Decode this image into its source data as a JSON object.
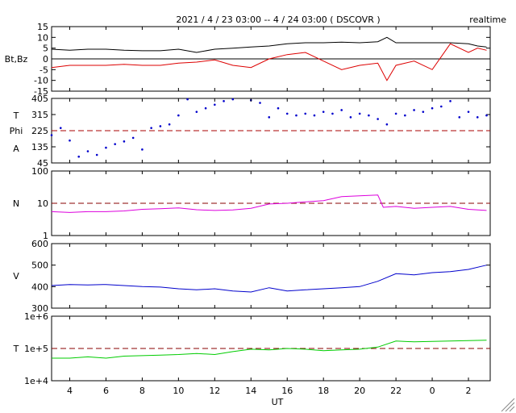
{
  "header": {
    "title": "2021 / 4 / 23  03:00 --  4 / 24  03:00 ( DSCOVR )",
    "mode": "realtime"
  },
  "xaxis": {
    "label": "UT",
    "ticks": [
      "4",
      "6",
      "8",
      "10",
      "12",
      "14",
      "16",
      "18",
      "20",
      "22",
      "0",
      "2"
    ],
    "range_hours": [
      3,
      27.2
    ]
  },
  "colors": {
    "bt": "#000000",
    "bz": "#dd0000",
    "angle": "#0000cc",
    "phi_ref": "#aa0000",
    "density": "#dd00dd",
    "velocity": "#0000cc",
    "temperature": "#00cc00",
    "ref_line": "#880000"
  },
  "chart_data": [
    {
      "id": "magnetic",
      "type": "line",
      "ylabel": "Bt,Bz",
      "ylim": [
        -15,
        15
      ],
      "yticks": [
        "15",
        "10",
        "5",
        "0",
        "-5",
        "-10",
        "-15"
      ],
      "zero_line": true,
      "x": [
        3,
        4,
        5,
        6,
        7,
        8,
        9,
        10,
        11,
        12,
        13,
        14,
        15,
        16,
        17,
        18,
        19,
        20,
        21,
        21.5,
        22,
        23,
        24,
        25,
        26,
        26.5,
        27
      ],
      "series": [
        {
          "name": "Bt",
          "values": [
            4.5,
            4,
            4.5,
            4.5,
            4,
            3.8,
            3.8,
            4.5,
            3,
            4.5,
            5,
            5.5,
            6,
            7,
            7.5,
            7.5,
            7.8,
            7.5,
            8,
            10,
            7.5,
            7.5,
            7.5,
            7.5,
            7,
            6,
            5.5
          ]
        },
        {
          "name": "Bz",
          "values": [
            -4,
            -3,
            -3,
            -3,
            -2.5,
            -3,
            -3,
            -2,
            -1.5,
            -0.5,
            -3,
            -4,
            0,
            2,
            3,
            -1,
            -5,
            -3,
            -2,
            -10,
            -3,
            -1,
            -5,
            7,
            3,
            5,
            4
          ]
        }
      ]
    },
    {
      "id": "angle",
      "type": "scatter",
      "ylabel": "T Phi A",
      "ylabel_lines": [
        "T",
        "Phi",
        "A"
      ],
      "ylim": [
        45,
        405
      ],
      "yticks": [
        "405",
        "315",
        "225",
        "135",
        "45"
      ],
      "ref_line": 225,
      "x": [
        3,
        3.5,
        4,
        4.5,
        5,
        5.5,
        6,
        6.5,
        7,
        7.5,
        8,
        8.5,
        9,
        9.5,
        10,
        10.5,
        11,
        11.5,
        12,
        12.5,
        13,
        13.5,
        14,
        14.5,
        15,
        15.5,
        16,
        16.5,
        17,
        17.5,
        18,
        18.5,
        19,
        19.5,
        20,
        20.5,
        21,
        21.5,
        22,
        22.5,
        23,
        23.5,
        24,
        24.5,
        25,
        25.5,
        26,
        26.5,
        27
      ],
      "values": [
        200,
        240,
        170,
        80,
        110,
        90,
        130,
        150,
        165,
        185,
        120,
        240,
        250,
        260,
        310,
        400,
        330,
        350,
        370,
        390,
        400,
        410,
        395,
        380,
        300,
        350,
        320,
        310,
        320,
        310,
        330,
        320,
        340,
        300,
        320,
        310,
        290,
        260,
        320,
        310,
        340,
        330,
        350,
        360,
        390,
        300,
        330,
        300,
        310
      ]
    },
    {
      "id": "density",
      "type": "line",
      "ylabel": "N",
      "scale": "log",
      "ylim": [
        1,
        100
      ],
      "yticks": [
        "100",
        "10",
        "1"
      ],
      "ref_line": 10,
      "x": [
        3,
        4,
        5,
        6,
        7,
        8,
        9,
        10,
        11,
        12,
        13,
        14,
        15,
        16,
        17,
        18,
        19,
        20,
        21,
        21.3,
        22,
        23,
        24,
        25,
        26,
        27
      ],
      "series": [
        {
          "name": "N",
          "values": [
            5.5,
            5.2,
            5.5,
            5.5,
            5.8,
            6.5,
            6.8,
            7.2,
            6.3,
            6,
            6.2,
            7,
            9.5,
            10,
            11,
            12,
            16,
            17,
            18,
            7.5,
            8,
            7,
            7.5,
            8,
            6.5,
            6
          ]
        }
      ]
    },
    {
      "id": "velocity",
      "type": "line",
      "ylabel": "V",
      "ylim": [
        300,
        600
      ],
      "yticks": [
        "600",
        "500",
        "400",
        "300"
      ],
      "x": [
        3,
        4,
        5,
        6,
        7,
        8,
        9,
        10,
        11,
        12,
        13,
        14,
        15,
        16,
        17,
        18,
        19,
        20,
        21,
        22,
        23,
        24,
        25,
        26,
        27
      ],
      "series": [
        {
          "name": "V",
          "values": [
            405,
            410,
            408,
            410,
            405,
            400,
            398,
            390,
            385,
            390,
            380,
            375,
            395,
            380,
            385,
            390,
            395,
            400,
            425,
            460,
            455,
            465,
            470,
            480,
            500
          ]
        }
      ]
    },
    {
      "id": "temperature",
      "type": "line",
      "ylabel": "T",
      "scale": "log",
      "ylim": [
        10000,
        1000000
      ],
      "yticks": [
        "1e+6",
        "1e+5",
        "1e+4"
      ],
      "ref_line": 100000,
      "x": [
        3,
        4,
        5,
        6,
        7,
        8,
        9,
        10,
        11,
        12,
        13,
        14,
        15,
        16,
        17,
        18,
        19,
        20,
        21,
        22,
        23,
        24,
        25,
        26,
        27
      ],
      "series": [
        {
          "name": "T",
          "values": [
            50000,
            50000,
            55000,
            50000,
            58000,
            60000,
            62000,
            65000,
            70000,
            65000,
            80000,
            95000,
            90000,
            100000,
            95000,
            85000,
            90000,
            95000,
            110000,
            170000,
            160000,
            165000,
            170000,
            175000,
            180000
          ]
        }
      ]
    }
  ]
}
